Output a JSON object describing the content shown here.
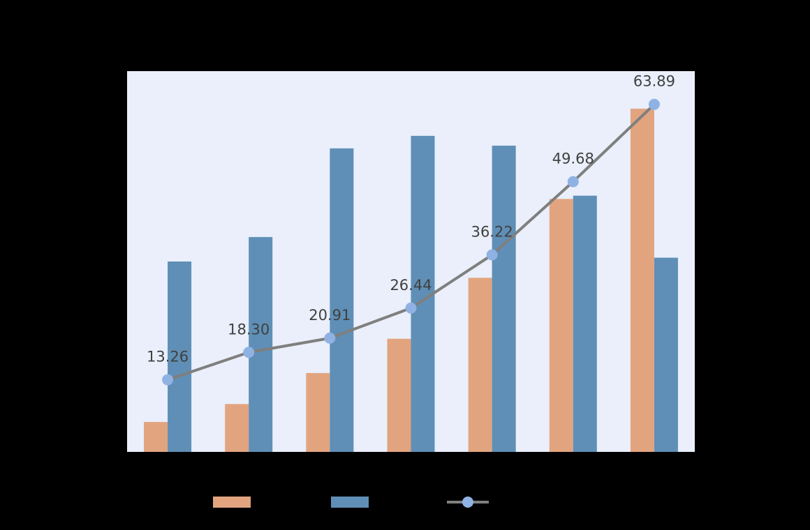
{
  "chart_data": {
    "type": "bar",
    "categories": [
      null,
      null,
      null,
      null,
      null,
      null,
      null
    ],
    "ylim": [
      0,
      70
    ],
    "series": [
      {
        "type": "bar",
        "color": "#e2a47f",
        "values": [
          5.5,
          8.8,
          14.5,
          20.8,
          32.0,
          46.5,
          63.1
        ]
      },
      {
        "type": "bar",
        "color": "#5f8fb6",
        "values": [
          35.0,
          39.5,
          55.8,
          58.1,
          56.3,
          47.1,
          35.7
        ]
      },
      {
        "type": "line",
        "color": "#7f7f7f",
        "marker_color": "#8fb2e3",
        "values": [
          13.26,
          18.3,
          20.91,
          26.44,
          36.22,
          49.68,
          63.89
        ],
        "value_labels": [
          "13.26",
          "18.30",
          "20.91",
          "26.44",
          "36.22",
          "49.68",
          "63.89"
        ]
      }
    ]
  }
}
